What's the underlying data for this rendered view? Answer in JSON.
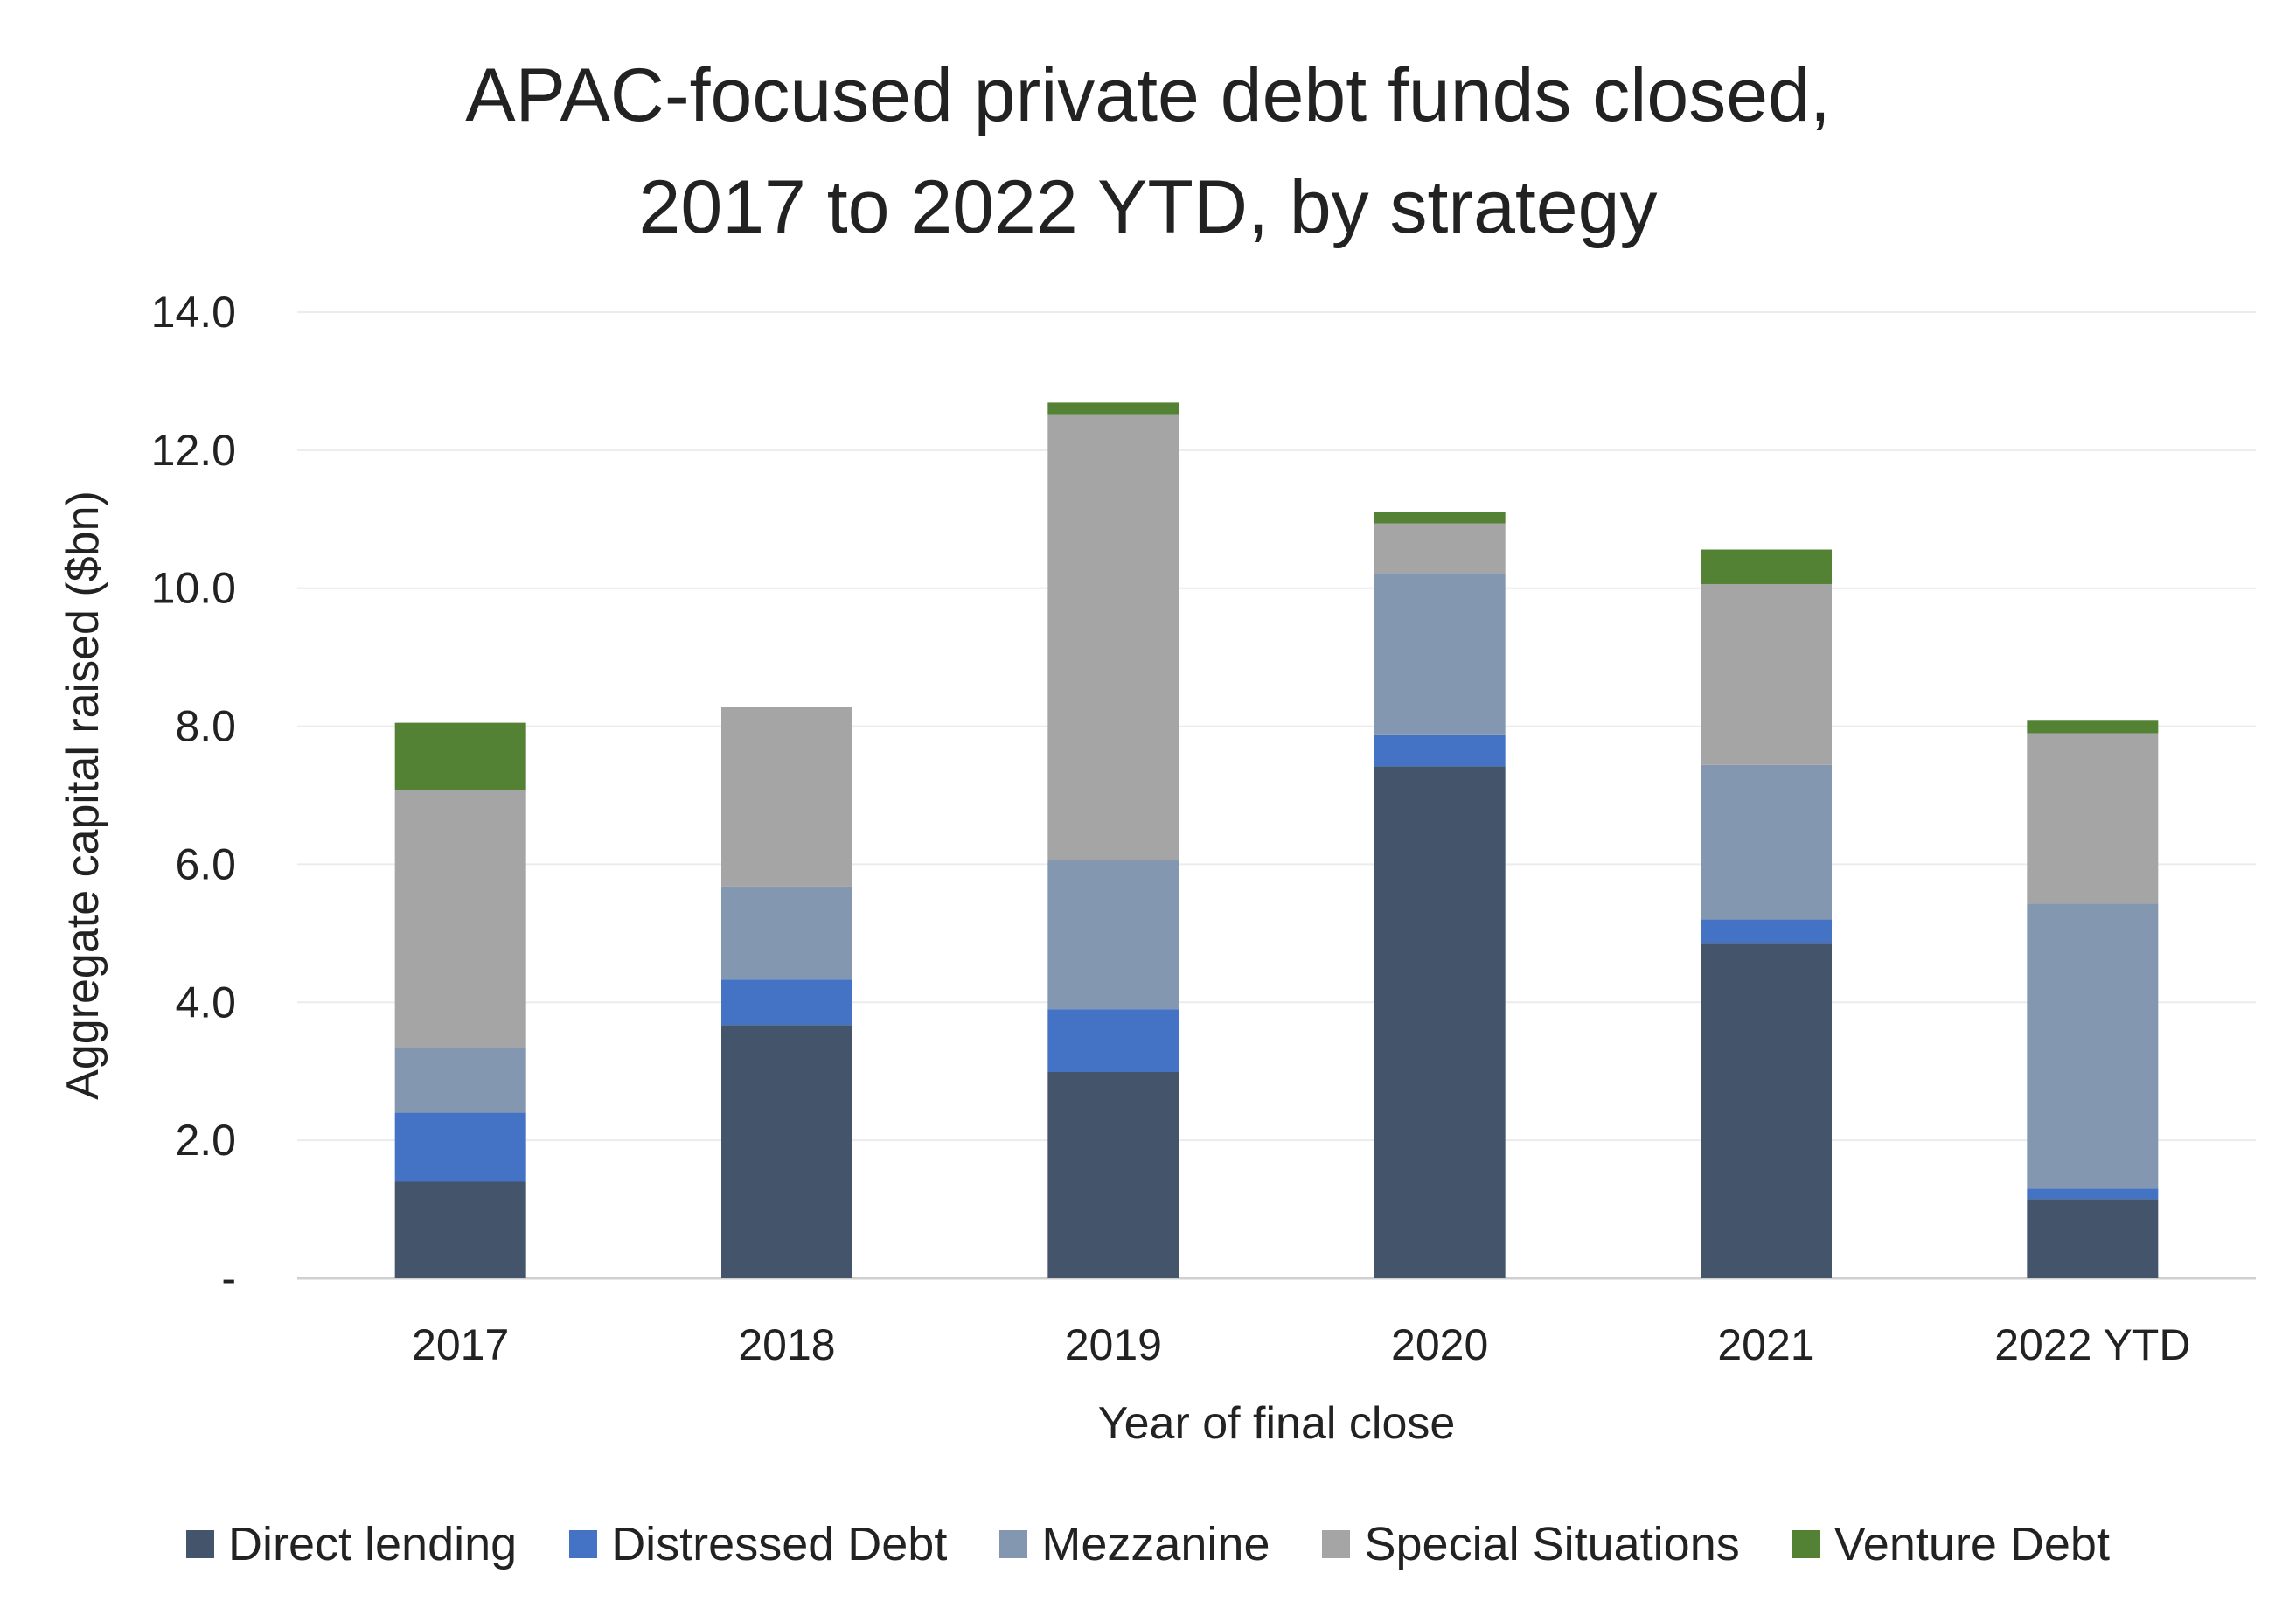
{
  "chart_data": {
    "type": "bar",
    "stacked": true,
    "title_lines": [
      "APAC-focused private debt funds closed,",
      "2017 to 2022 YTD, by strategy"
    ],
    "xlabel": "Year of final close",
    "ylabel": "Aggregate capital raised ($bn)",
    "ylim": [
      0,
      14
    ],
    "yticks": [
      {
        "value": 0,
        "label": "-"
      },
      {
        "value": 2,
        "label": "2.0"
      },
      {
        "value": 4,
        "label": "4.0"
      },
      {
        "value": 6,
        "label": "6.0"
      },
      {
        "value": 8,
        "label": "8.0"
      },
      {
        "value": 10,
        "label": "10.0"
      },
      {
        "value": 12,
        "label": "12.0"
      },
      {
        "value": 14,
        "label": "14.0"
      }
    ],
    "grid": true,
    "legend_position": "bottom",
    "categories": [
      "2017",
      "2018",
      "2019",
      "2020",
      "2021",
      "2022 YTD"
    ],
    "series": [
      {
        "name": "Direct lending",
        "color": "#44546a",
        "values": [
          1.4,
          3.67,
          2.99,
          7.42,
          4.85,
          1.15
        ]
      },
      {
        "name": "Distressed Debt",
        "color": "#4472c4",
        "values": [
          1.0,
          0.66,
          0.91,
          0.45,
          0.35,
          0.15
        ]
      },
      {
        "name": "Mezzanine",
        "color": "#8497b0",
        "values": [
          0.95,
          1.35,
          2.16,
          2.35,
          2.24,
          4.13
        ]
      },
      {
        "name": "Special Situations",
        "color": "#a5a5a5",
        "values": [
          3.72,
          2.6,
          6.45,
          0.72,
          2.62,
          2.47
        ]
      },
      {
        "name": "Venture Debt",
        "color": "#548235",
        "values": [
          0.98,
          0.0,
          0.18,
          0.16,
          0.5,
          0.18
        ]
      }
    ]
  }
}
